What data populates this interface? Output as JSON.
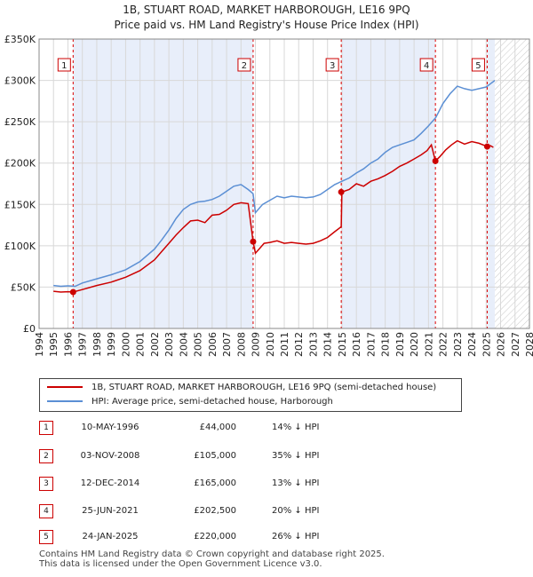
{
  "header": {
    "title_line1": "1B, STUART ROAD, MARKET HARBOROUGH, LE16 9PQ",
    "title_line2": "Price paid vs. HM Land Registry's House Price Index (HPI)"
  },
  "chart_data": {
    "type": "line",
    "title": "1B, STUART ROAD, MARKET HARBOROUGH, LE16 9PQ — Price paid vs. HM Land Registry's House Price Index (HPI)",
    "xlabel": "",
    "ylabel": "",
    "xlim": [
      1994,
      2028
    ],
    "ylim": [
      0,
      350000
    ],
    "x_ticks": [
      "1994",
      "1995",
      "1996",
      "1997",
      "1998",
      "1999",
      "2000",
      "2001",
      "2002",
      "2003",
      "2004",
      "2005",
      "2006",
      "2007",
      "2008",
      "2009",
      "2010",
      "2011",
      "2012",
      "2013",
      "2014",
      "2015",
      "2016",
      "2017",
      "2018",
      "2019",
      "2020",
      "2021",
      "2022",
      "2023",
      "2024",
      "2025",
      "2026",
      "2027",
      "2028"
    ],
    "y_ticks": [
      {
        "value": 0,
        "label": "£0"
      },
      {
        "value": 50000,
        "label": "£50K"
      },
      {
        "value": 100000,
        "label": "£100K"
      },
      {
        "value": 150000,
        "label": "£150K"
      },
      {
        "value": 200000,
        "label": "£200K"
      },
      {
        "value": 250000,
        "label": "£250K"
      },
      {
        "value": 300000,
        "label": "£300K"
      },
      {
        "value": 350000,
        "label": "£350K"
      }
    ],
    "grid": true,
    "shaded_ranges": [
      [
        1996.36,
        2008.84
      ],
      [
        2014.95,
        2021.48
      ],
      [
        2025.07,
        2025.6
      ]
    ],
    "data_end": 2025.6,
    "series": [
      {
        "name": "1B, STUART ROAD, MARKET HARBOROUGH, LE16 9PQ (semi-detached house)",
        "color": "#cc0000",
        "x": [
          1995.0,
          1995.5,
          1996.0,
          1996.36,
          1997.0,
          1998.0,
          1999.0,
          2000.0,
          2001.0,
          2002.0,
          2002.5,
          2003.0,
          2003.5,
          2004.0,
          2004.5,
          2005.0,
          2005.5,
          2006.0,
          2006.5,
          2007.0,
          2007.5,
          2008.0,
          2008.5,
          2008.84,
          2009.0,
          2009.3,
          2009.6,
          2010.0,
          2010.5,
          2011.0,
          2011.5,
          2012.0,
          2012.5,
          2013.0,
          2013.5,
          2014.0,
          2014.5,
          2014.95,
          2015.0,
          2015.5,
          2016.0,
          2016.5,
          2017.0,
          2017.5,
          2018.0,
          2018.5,
          2019.0,
          2019.5,
          2020.0,
          2020.5,
          2020.9,
          2021.2,
          2021.48,
          2021.8,
          2022.2,
          2022.6,
          2023.0,
          2023.5,
          2024.0,
          2024.5,
          2025.07,
          2025.3,
          2025.5
        ],
        "values": [
          45000,
          44000,
          44500,
          44000,
          47000,
          52000,
          56000,
          62000,
          70000,
          83000,
          93000,
          103000,
          113000,
          122000,
          130000,
          131000,
          128000,
          137000,
          138000,
          143000,
          150000,
          152000,
          151000,
          105000,
          91000,
          97000,
          103000,
          104000,
          106000,
          103000,
          104000,
          103000,
          102000,
          103000,
          106000,
          110000,
          117000,
          123000,
          165000,
          168000,
          175000,
          172000,
          178000,
          181000,
          185000,
          190000,
          196000,
          200000,
          205000,
          210000,
          215000,
          222000,
          202500,
          208000,
          216000,
          222000,
          227000,
          223000,
          226000,
          224000,
          220000,
          221000,
          219000
        ]
      },
      {
        "name": "HPI: Average price, semi-detached house, Harborough",
        "color": "#5b8fd4",
        "x": [
          1995.0,
          1995.5,
          1996.0,
          1996.5,
          1997.0,
          1998.0,
          1999.0,
          2000.0,
          2001.0,
          2002.0,
          2002.5,
          2003.0,
          2003.5,
          2004.0,
          2004.5,
          2005.0,
          2005.5,
          2006.0,
          2006.5,
          2007.0,
          2007.5,
          2008.0,
          2008.5,
          2008.84,
          2009.0,
          2009.5,
          2010.0,
          2010.5,
          2011.0,
          2011.5,
          2012.0,
          2012.5,
          2013.0,
          2013.5,
          2014.0,
          2014.5,
          2015.0,
          2015.5,
          2016.0,
          2016.5,
          2017.0,
          2017.5,
          2018.0,
          2018.5,
          2019.0,
          2019.5,
          2020.0,
          2020.5,
          2021.0,
          2021.5,
          2022.0,
          2022.5,
          2023.0,
          2023.5,
          2024.0,
          2024.5,
          2025.0,
          2025.3,
          2025.6
        ],
        "values": [
          52000,
          51000,
          51500,
          51000,
          55000,
          60000,
          65000,
          71000,
          81000,
          96000,
          107000,
          119000,
          133000,
          144000,
          150000,
          153000,
          154000,
          156000,
          160000,
          166000,
          172000,
          174000,
          168000,
          163000,
          140000,
          150000,
          155000,
          160000,
          158000,
          160000,
          159000,
          158000,
          159000,
          162000,
          168000,
          174000,
          178000,
          182000,
          188000,
          193000,
          200000,
          205000,
          213000,
          219000,
          222000,
          225000,
          228000,
          236000,
          245000,
          255000,
          272000,
          284000,
          293000,
          290000,
          288000,
          290000,
          292000,
          296000,
          300000
        ]
      }
    ],
    "sale_points": [
      {
        "label": "1",
        "x": 1996.36,
        "value": 44000
      },
      {
        "label": "2",
        "x": 2008.84,
        "value": 105000
      },
      {
        "label": "3",
        "x": 2014.95,
        "value": 165000
      },
      {
        "label": "4",
        "x": 2021.48,
        "value": 202500
      },
      {
        "label": "5",
        "x": 2025.07,
        "value": 220000
      }
    ]
  },
  "legend": {
    "property_label": "1B, STUART ROAD, MARKET HARBOROUGH, LE16 9PQ (semi-detached house)",
    "hpi_label": "HPI: Average price, semi-detached house, Harborough",
    "property_color": "#cc0000",
    "hpi_color": "#5b8fd4"
  },
  "sales": [
    {
      "num": "1",
      "date": "10-MAY-1996",
      "price": "£44,000",
      "hpi": "14% ↓ HPI"
    },
    {
      "num": "2",
      "date": "03-NOV-2008",
      "price": "£105,000",
      "hpi": "35% ↓ HPI"
    },
    {
      "num": "3",
      "date": "12-DEC-2014",
      "price": "£165,000",
      "hpi": "13% ↓ HPI"
    },
    {
      "num": "4",
      "date": "25-JUN-2021",
      "price": "£202,500",
      "hpi": "20% ↓ HPI"
    },
    {
      "num": "5",
      "date": "24-JAN-2025",
      "price": "£220,000",
      "hpi": "26% ↓ HPI"
    }
  ],
  "footer": {
    "line1": "Contains HM Land Registry data © Crown copyright and database right 2025.",
    "line2": "This data is licensed under the Open Government Licence v3.0."
  }
}
